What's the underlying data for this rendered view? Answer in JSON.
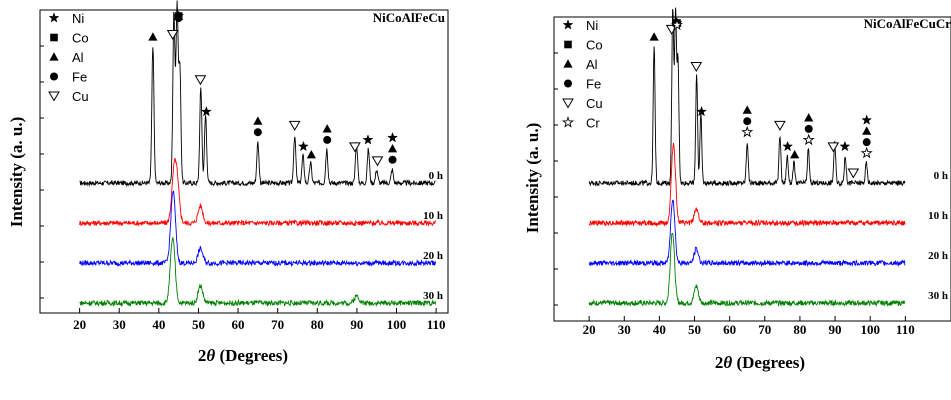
{
  "chart_data": [
    {
      "type": "line",
      "title": "NiCoAlFeCu",
      "xlabel_main": "2",
      "xlabel_theta": "θ",
      "xlabel_rest": " (Degrees)",
      "ylabel": "Intensity (a. u.)",
      "xlim": [
        10,
        113
      ],
      "x_ticks": [
        20,
        30,
        40,
        50,
        60,
        70,
        80,
        90,
        100,
        110
      ],
      "legend": [
        {
          "name": "Ni",
          "symbol": "star-filled"
        },
        {
          "name": "Co",
          "symbol": "square"
        },
        {
          "name": "Al",
          "symbol": "triangle-up"
        },
        {
          "name": "Fe",
          "symbol": "circle"
        },
        {
          "name": "Cu",
          "symbol": "triangle-down-open"
        }
      ],
      "series": [
        {
          "name": "0 h",
          "color": "#000000",
          "offset": 3.0,
          "peaks": [
            [
              38.5,
              1.0
            ],
            [
              43.8,
              1.25
            ],
            [
              44.6,
              1.3
            ],
            [
              45.3,
              0.85
            ],
            [
              50.6,
              0.7
            ],
            [
              51.8,
              0.5
            ],
            [
              65.0,
              0.3
            ],
            [
              74.3,
              0.35
            ],
            [
              76.4,
              0.2
            ],
            [
              78.3,
              0.15
            ],
            [
              82.4,
              0.25
            ],
            [
              89.9,
              0.3
            ],
            [
              92.9,
              0.25
            ],
            [
              95.0,
              0.1
            ],
            [
              98.9,
              0.1
            ]
          ]
        },
        {
          "name": "10 h",
          "color": "#ff0000",
          "offset": 2.0,
          "peaks": [
            [
              43.8,
              0.3
            ],
            [
              44.6,
              0.25
            ],
            [
              50.5,
              0.12
            ]
          ]
        },
        {
          "name": "20 h",
          "color": "#0000ff",
          "offset": 1.0,
          "peaks": [
            [
              43.6,
              0.5
            ],
            [
              50.5,
              0.1
            ]
          ]
        },
        {
          "name": "30 h",
          "color": "#008000",
          "offset": 0.0,
          "peaks": [
            [
              43.5,
              0.45
            ],
            [
              50.5,
              0.12
            ],
            [
              90.0,
              0.05
            ]
          ]
        }
      ],
      "markers": [
        {
          "x": 43.5,
          "symbols": [
            "triangle-down-open"
          ]
        },
        {
          "x": 45.0,
          "symbols": [
            "star-filled",
            "square",
            "triangle-up",
            "circle"
          ]
        },
        {
          "x": 38.5,
          "symbols": [
            "triangle-up"
          ]
        },
        {
          "x": 50.5,
          "symbols": [
            "triangle-down-open"
          ]
        },
        {
          "x": 52.0,
          "symbols": [
            "star-filled"
          ]
        },
        {
          "x": 65.0,
          "symbols": [
            "triangle-up",
            "circle"
          ]
        },
        {
          "x": 74.3,
          "symbols": [
            "triangle-down-open"
          ]
        },
        {
          "x": 76.5,
          "symbols": [
            "star-filled"
          ]
        },
        {
          "x": 78.5,
          "symbols": [
            "triangle-up"
          ]
        },
        {
          "x": 82.5,
          "symbols": [
            "triangle-up",
            "circle"
          ]
        },
        {
          "x": 89.5,
          "symbols": [
            "triangle-down-open"
          ]
        },
        {
          "x": 92.8,
          "symbols": [
            "star-filled"
          ]
        },
        {
          "x": 95.2,
          "symbols": [
            "triangle-down-open"
          ]
        },
        {
          "x": 99.0,
          "symbols": [
            "star-filled",
            "triangle-up",
            "circle"
          ]
        }
      ]
    },
    {
      "type": "line",
      "title": "NiCoAlFeCuCr",
      "xlabel_main": "2",
      "xlabel_theta": "θ",
      "xlabel_rest": " (Degrees)",
      "ylabel": "Intensity (a. u.)",
      "xlim": [
        10,
        123
      ],
      "x_ticks": [
        20,
        30,
        40,
        50,
        60,
        70,
        80,
        90,
        100,
        110
      ],
      "legend": [
        {
          "name": "Ni",
          "symbol": "star-filled"
        },
        {
          "name": "Co",
          "symbol": "square"
        },
        {
          "name": "Al",
          "symbol": "triangle-up"
        },
        {
          "name": "Fe",
          "symbol": "circle"
        },
        {
          "name": "Cu",
          "symbol": "triangle-down-open"
        },
        {
          "name": "Cr",
          "symbol": "star-open"
        }
      ],
      "series": [
        {
          "name": "0 h",
          "color": "#000000",
          "offset": 3.0,
          "peaks": [
            [
              38.5,
              1.0
            ],
            [
              43.8,
              1.3
            ],
            [
              44.6,
              1.25
            ],
            [
              45.3,
              0.9
            ],
            [
              50.6,
              0.8
            ],
            [
              51.8,
              0.5
            ],
            [
              65.0,
              0.3
            ],
            [
              74.3,
              0.35
            ],
            [
              76.4,
              0.2
            ],
            [
              78.3,
              0.15
            ],
            [
              82.4,
              0.25
            ],
            [
              89.9,
              0.3
            ],
            [
              92.9,
              0.2
            ],
            [
              98.9,
              0.15
            ]
          ]
        },
        {
          "name": "10 h",
          "color": "#ff0000",
          "offset": 2.0,
          "peaks": [
            [
              44.0,
              0.55
            ],
            [
              50.5,
              0.1
            ]
          ]
        },
        {
          "name": "20 h",
          "color": "#0000ff",
          "offset": 1.0,
          "peaks": [
            [
              43.8,
              0.45
            ],
            [
              50.5,
              0.1
            ]
          ]
        },
        {
          "name": "30 h",
          "color": "#008000",
          "offset": 0.0,
          "peaks": [
            [
              43.7,
              0.5
            ],
            [
              50.5,
              0.12
            ]
          ]
        }
      ],
      "markers": [
        {
          "x": 43.5,
          "symbols": [
            "triangle-down-open"
          ]
        },
        {
          "x": 45.0,
          "symbols": [
            "star-filled",
            "square",
            "triangle-up",
            "circle",
            "star-open"
          ]
        },
        {
          "x": 38.5,
          "symbols": [
            "triangle-up"
          ]
        },
        {
          "x": 50.5,
          "symbols": [
            "triangle-down-open"
          ]
        },
        {
          "x": 52.0,
          "symbols": [
            "star-filled"
          ]
        },
        {
          "x": 65.0,
          "symbols": [
            "triangle-up",
            "circle",
            "star-open"
          ]
        },
        {
          "x": 74.3,
          "symbols": [
            "triangle-down-open"
          ]
        },
        {
          "x": 76.5,
          "symbols": [
            "star-filled"
          ]
        },
        {
          "x": 78.5,
          "symbols": [
            "triangle-up"
          ]
        },
        {
          "x": 82.5,
          "symbols": [
            "triangle-up",
            "circle",
            "star-open"
          ]
        },
        {
          "x": 89.5,
          "symbols": [
            "triangle-down-open"
          ]
        },
        {
          "x": 92.8,
          "symbols": [
            "star-filled"
          ]
        },
        {
          "x": 95.2,
          "symbols": [
            "triangle-down-open"
          ]
        },
        {
          "x": 99.0,
          "symbols": [
            "star-filled",
            "triangle-up",
            "circle",
            "star-open"
          ]
        }
      ]
    }
  ]
}
